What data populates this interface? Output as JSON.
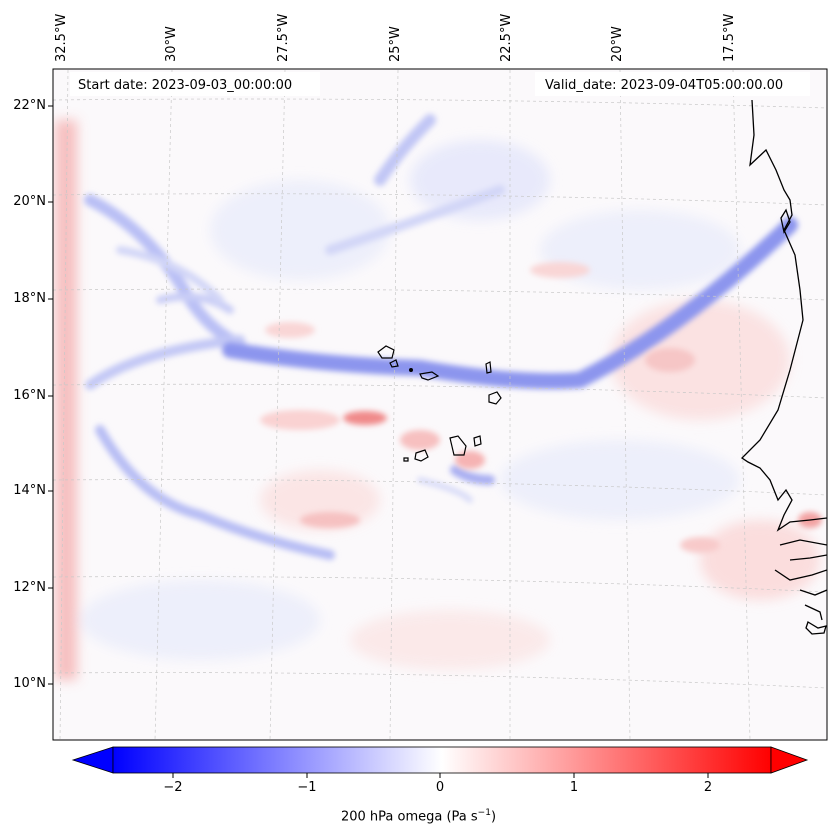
{
  "header": {
    "start_date": "Start date: 2023-09-03_00:00:00",
    "valid_date": "Valid_date: 2023-09-04T05:00:00.00"
  },
  "map": {
    "longitude_labels": [
      "32.5°W",
      "30°W",
      "27.5°W",
      "25°W",
      "22.5°W",
      "20°W",
      "17.5°W"
    ],
    "latitude_labels": [
      "22°N",
      "20°N",
      "18°N",
      "16°N",
      "14°N",
      "12°N",
      "10°N"
    ],
    "gridlines": true,
    "coastlines": true,
    "colormap": "bwr",
    "colors": {
      "negative": "#0000ff",
      "zero": "#ffffff",
      "positive": "#ff0000",
      "coast": "#000000"
    }
  },
  "colorbar": {
    "tick_labels": [
      "−2",
      "−1",
      "0",
      "1",
      "2"
    ],
    "title_main": "200 hPa omega (Pa s",
    "title_sup": "−1",
    "title_end": ")",
    "range": [
      -2.7,
      2.7
    ],
    "extend": "both"
  }
}
